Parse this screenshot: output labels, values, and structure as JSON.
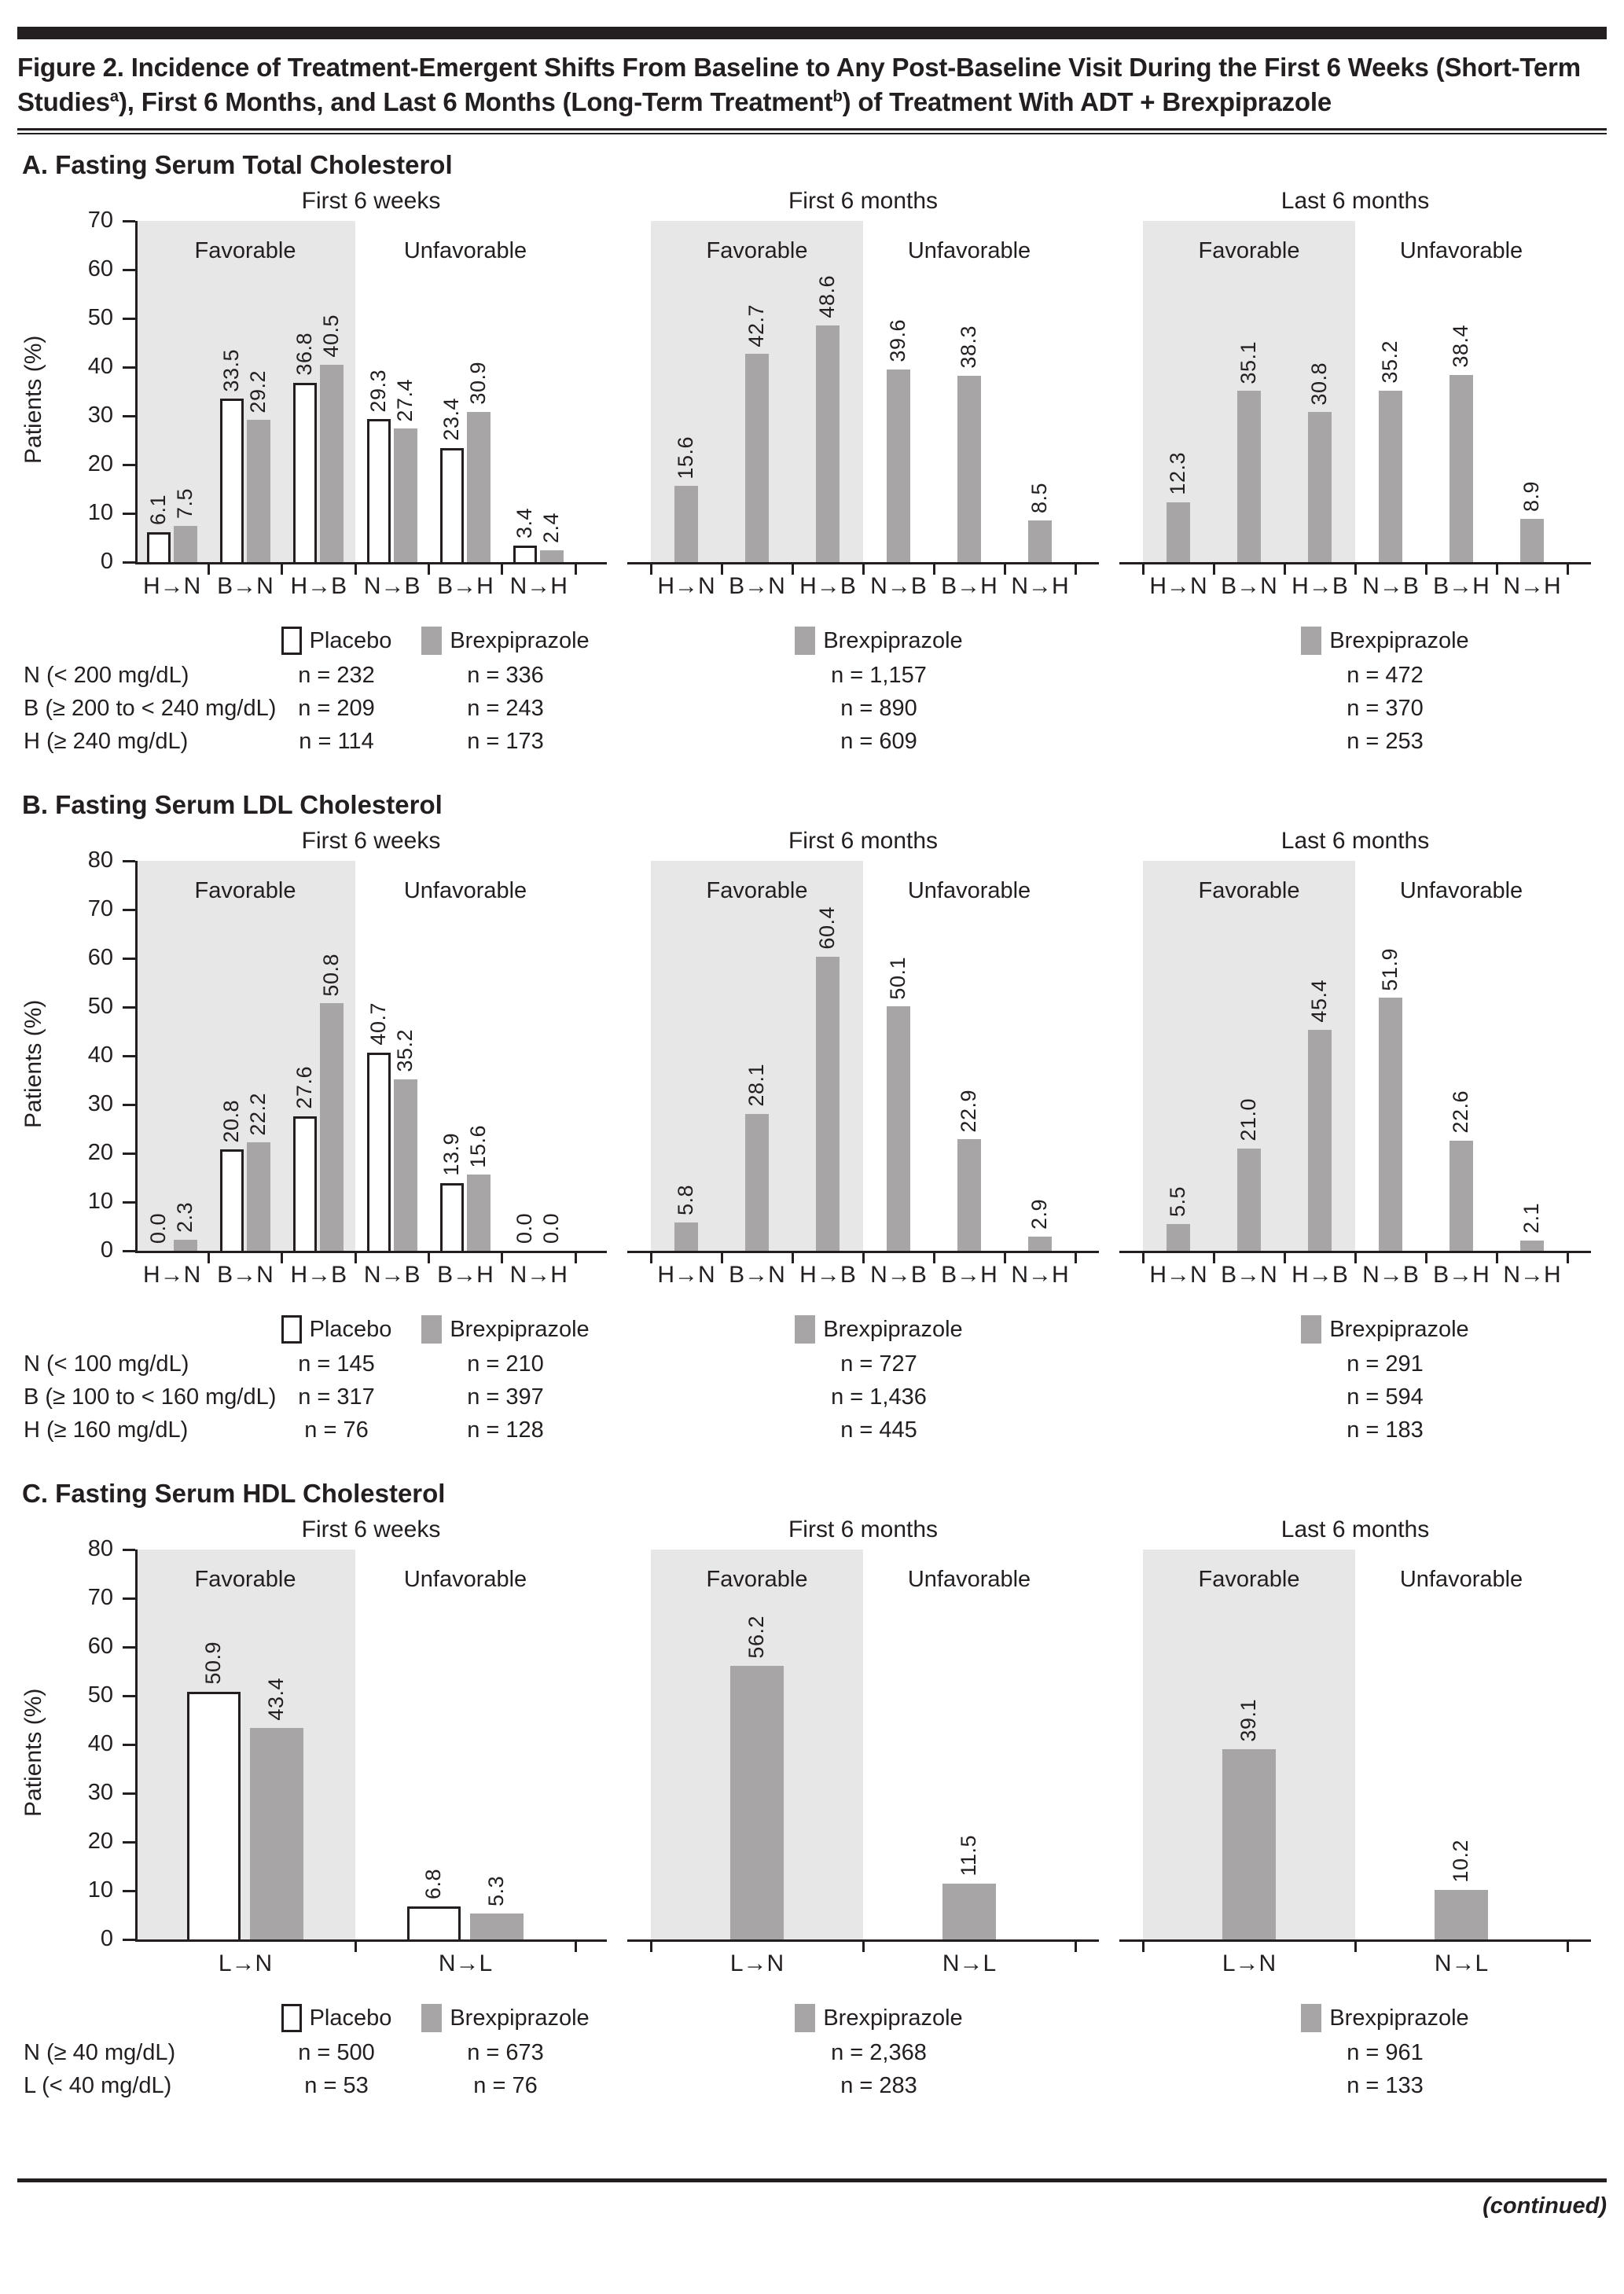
{
  "header": {
    "title": {
      "line1": "Figure 2. Incidence of Treatment-Emergent Shifts From Baseline to Any Post-Baseline Visit During the First 6 Weeks (Short-Term",
      "line2_pre": "Studies",
      "sup_a": "a",
      "line2_mid": "), First 6 Months, and Last 6 Months (Long-Term Treatment",
      "sup_b": "b",
      "line2_post": ") of Treatment With ADT + Brexpiprazole"
    }
  },
  "footer": {
    "continued_label": "(continued)"
  },
  "colors": {
    "bar_gray": "#a7a5a5",
    "bar_white": "#ffffff",
    "favorable_bg": "#e8e7e7",
    "axis_black": "#231f20"
  },
  "chart_data": [
    {
      "panel_id": "A",
      "type": "bar",
      "panel_label": "A. Fasting Serum Total Cholesterol",
      "ylabel": "Patients (%)",
      "ylim": [
        0,
        70
      ],
      "ytick_step": 10,
      "grid": false,
      "categories": [
        "H→N",
        "B→N",
        "H→B",
        "N→B",
        "B→H",
        "N→H"
      ],
      "favorable_count": 3,
      "region_labels": {
        "favorable": "Favorable",
        "unfavorable": "Unfavorable"
      },
      "sections": [
        {
          "title": "First 6 weeks",
          "series": [
            {
              "name": "Placebo",
              "style": "placebo",
              "values": [
                6.1,
                33.5,
                36.8,
                29.3,
                23.4,
                3.4
              ]
            },
            {
              "name": "Brexpiprazole",
              "style": "brexpiprazole",
              "values": [
                7.5,
                29.2,
                40.5,
                27.4,
                30.9,
                2.4
              ]
            }
          ],
          "legend_items": [
            {
              "style": "placebo",
              "label": "Placebo"
            },
            {
              "style": "brexpiprazole",
              "label": "Brexpiprazole"
            }
          ]
        },
        {
          "title": "First 6 months",
          "series": [
            {
              "name": "Brexpiprazole",
              "style": "brexpiprazole",
              "values": [
                15.6,
                42.7,
                48.6,
                39.6,
                38.3,
                8.5
              ]
            }
          ],
          "legend_items": [
            {
              "style": "brexpiprazole",
              "label": "Brexpiprazole"
            }
          ]
        },
        {
          "title": "Last 6 months",
          "series": [
            {
              "name": "Brexpiprazole",
              "style": "brexpiprazole",
              "values": [
                12.3,
                35.1,
                30.8,
                35.2,
                38.4,
                8.9
              ]
            }
          ],
          "legend_items": [
            {
              "style": "brexpiprazole",
              "label": "Brexpiprazole"
            }
          ]
        }
      ],
      "legend_rows": [
        {
          "label": "N (< 200 mg/dL)",
          "values": [
            "n = 232",
            "n = 336",
            "n = 1,157",
            "n = 472"
          ]
        },
        {
          "label": "B (≥ 200 to < 240 mg/dL)",
          "values": [
            "n = 209",
            "n = 243",
            "n = 890",
            "n = 370"
          ]
        },
        {
          "label": "H (≥ 240 mg/dL)",
          "values": [
            "n = 114",
            "n = 173",
            "n = 609",
            "n = 253"
          ]
        }
      ]
    },
    {
      "panel_id": "B",
      "type": "bar",
      "panel_label": "B. Fasting Serum LDL Cholesterol",
      "ylabel": "Patients (%)",
      "ylim": [
        0,
        80
      ],
      "ytick_step": 10,
      "grid": false,
      "categories": [
        "H→N",
        "B→N",
        "H→B",
        "N→B",
        "B→H",
        "N→H"
      ],
      "favorable_count": 3,
      "region_labels": {
        "favorable": "Favorable",
        "unfavorable": "Unfavorable"
      },
      "sections": [
        {
          "title": "First 6 weeks",
          "series": [
            {
              "name": "Placebo",
              "style": "placebo",
              "values": [
                0.0,
                20.8,
                27.6,
                40.7,
                13.9,
                0.0
              ]
            },
            {
              "name": "Brexpiprazole",
              "style": "brexpiprazole",
              "values": [
                2.3,
                22.2,
                50.8,
                35.2,
                15.6,
                0.0
              ]
            }
          ],
          "legend_items": [
            {
              "style": "placebo",
              "label": "Placebo"
            },
            {
              "style": "brexpiprazole",
              "label": "Brexpiprazole"
            }
          ]
        },
        {
          "title": "First 6 months",
          "series": [
            {
              "name": "Brexpiprazole",
              "style": "brexpiprazole",
              "values": [
                5.8,
                28.1,
                60.4,
                50.1,
                22.9,
                2.9
              ]
            }
          ],
          "legend_items": [
            {
              "style": "brexpiprazole",
              "label": "Brexpiprazole"
            }
          ]
        },
        {
          "title": "Last 6 months",
          "series": [
            {
              "name": "Brexpiprazole",
              "style": "brexpiprazole",
              "values": [
                5.5,
                21.0,
                45.4,
                51.9,
                22.6,
                2.1
              ]
            }
          ],
          "legend_items": [
            {
              "style": "brexpiprazole",
              "label": "Brexpiprazole"
            }
          ]
        }
      ],
      "legend_rows": [
        {
          "label": "N (< 100 mg/dL)",
          "values": [
            "n = 145",
            "n = 210",
            "n = 727",
            "n = 291"
          ]
        },
        {
          "label": "B (≥ 100 to < 160 mg/dL)",
          "values": [
            "n = 317",
            "n = 397",
            "n = 1,436",
            "n = 594"
          ]
        },
        {
          "label": "H (≥ 160 mg/dL)",
          "values": [
            "n = 76",
            "n = 128",
            "n = 445",
            "n = 183"
          ]
        }
      ]
    },
    {
      "panel_id": "C",
      "type": "bar",
      "panel_label": "C. Fasting Serum HDL Cholesterol",
      "ylabel": "Patients (%)",
      "ylim": [
        0,
        80
      ],
      "ytick_step": 10,
      "grid": false,
      "categories": [
        "L→N",
        "N→L"
      ],
      "favorable_count": 1,
      "region_labels": {
        "favorable": "Favorable",
        "unfavorable": "Unfavorable"
      },
      "sections": [
        {
          "title": "First 6 weeks",
          "series": [
            {
              "name": "Placebo",
              "style": "placebo",
              "values": [
                50.9,
                6.8
              ]
            },
            {
              "name": "Brexpiprazole",
              "style": "brexpiprazole",
              "values": [
                43.4,
                5.3
              ]
            }
          ],
          "legend_items": [
            {
              "style": "placebo",
              "label": "Placebo"
            },
            {
              "style": "brexpiprazole",
              "label": "Brexpiprazole"
            }
          ]
        },
        {
          "title": "First 6 months",
          "series": [
            {
              "name": "Brexpiprazole",
              "style": "brexpiprazole",
              "values": [
                56.2,
                11.5
              ]
            }
          ],
          "legend_items": [
            {
              "style": "brexpiprazole",
              "label": "Brexpiprazole"
            }
          ]
        },
        {
          "title": "Last 6 months",
          "series": [
            {
              "name": "Brexpiprazole",
              "style": "brexpiprazole",
              "values": [
                39.1,
                10.2
              ]
            }
          ],
          "legend_items": [
            {
              "style": "brexpiprazole",
              "label": "Brexpiprazole"
            }
          ]
        }
      ],
      "legend_rows": [
        {
          "label": "N (≥ 40 mg/dL)",
          "values": [
            "n = 500",
            "n = 673",
            "n = 2,368",
            "n = 961"
          ]
        },
        {
          "label": "L (< 40 mg/dL)",
          "values": [
            "n = 53",
            "n = 76",
            "n = 283",
            "n = 133"
          ]
        }
      ]
    }
  ]
}
